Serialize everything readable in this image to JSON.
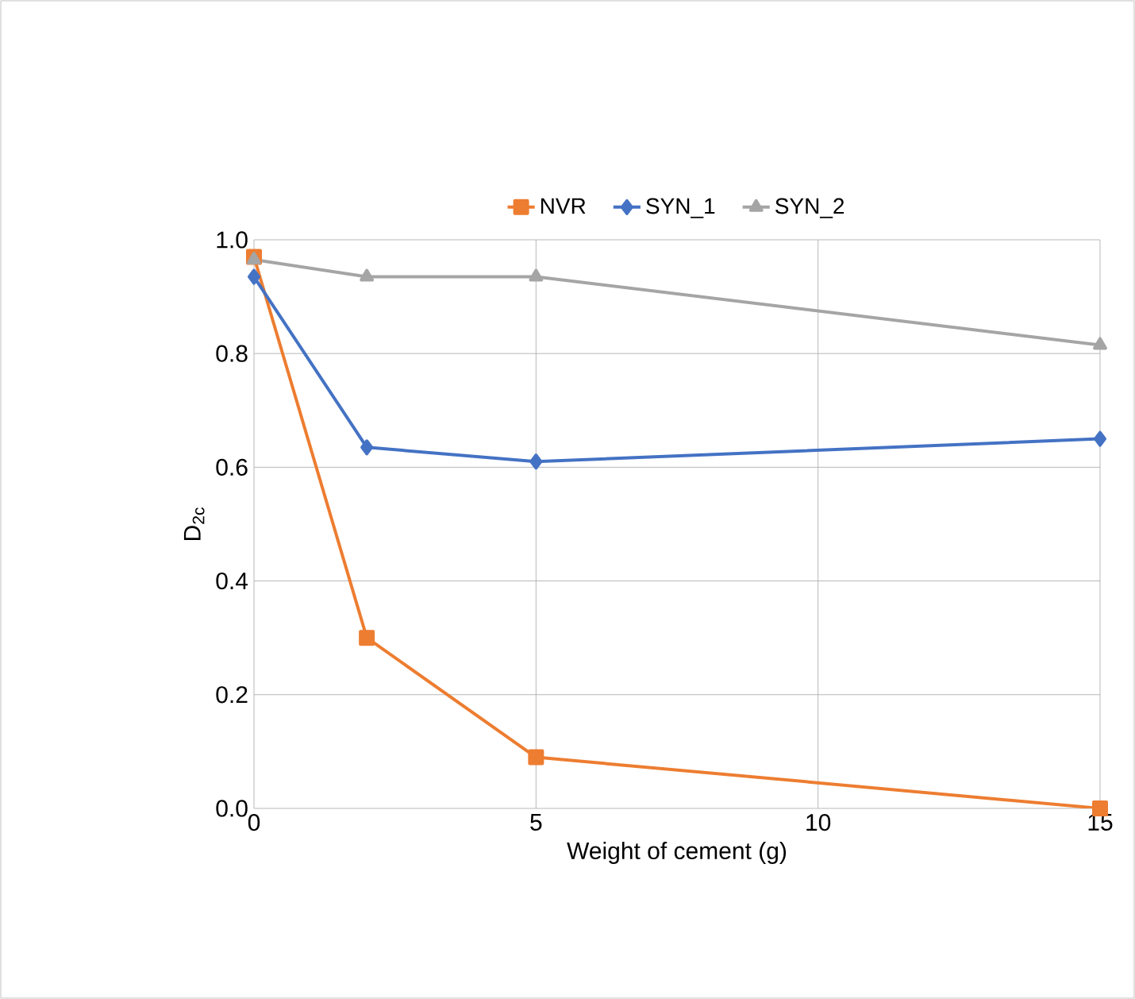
{
  "chart_data": {
    "type": "line",
    "xlabel": "Weight of cement (g)",
    "ylabel": "D$_{2c}$",
    "x": [
      0,
      2,
      5,
      15
    ],
    "series": [
      {
        "name": "NVR",
        "color": "#ed7d31",
        "marker": "square",
        "values": [
          0.97,
          0.3,
          0.09,
          0.0
        ]
      },
      {
        "name": "SYN_1",
        "color": "#4472c4",
        "marker": "diamond",
        "values": [
          0.935,
          0.635,
          0.61,
          0.65
        ]
      },
      {
        "name": "SYN_2",
        "color": "#a5a5a5",
        "marker": "triangle",
        "values": [
          0.965,
          0.935,
          0.935,
          0.815
        ]
      }
    ],
    "xlim": [
      0,
      15
    ],
    "xticks": [
      0,
      5,
      10,
      15
    ],
    "ylim": [
      0,
      1
    ],
    "yticks": [
      {
        "value": 0,
        "label": "0.0"
      },
      {
        "value": 0.2,
        "label": "0.2"
      },
      {
        "value": 0.4,
        "label": "0.4"
      },
      {
        "value": 0.6,
        "label": "0.6"
      },
      {
        "value": 0.8,
        "label": "0.8"
      },
      {
        "value": 1,
        "label": "1.0"
      }
    ],
    "grid": true,
    "legend": "top",
    "line_style": "solid"
  }
}
